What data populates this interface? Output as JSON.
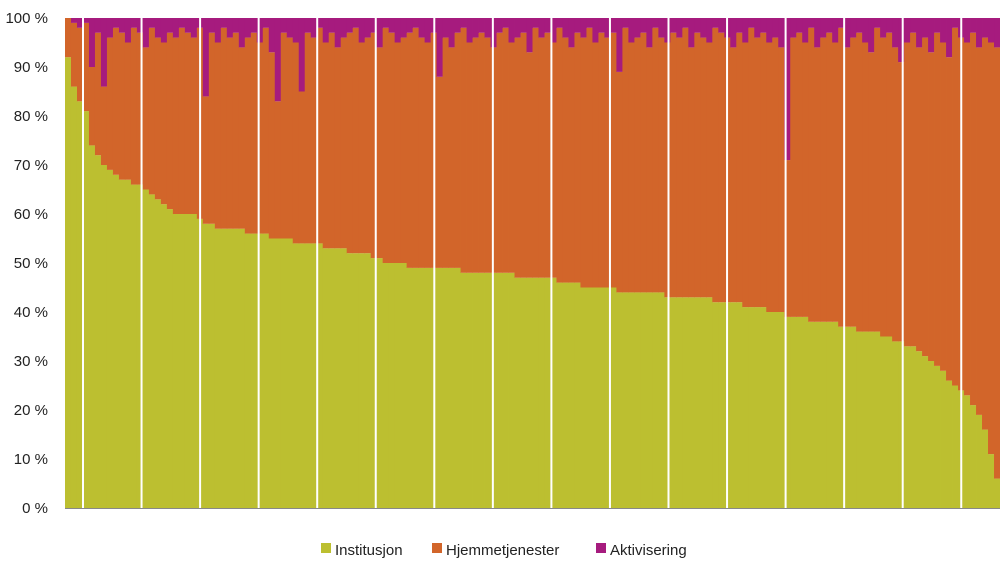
{
  "chart_data": {
    "type": "bar",
    "stacked": true,
    "normalized_percent": true,
    "ylim": [
      0,
      100
    ],
    "y_ticks": [
      "0 %",
      "10 %",
      "20 %",
      "30 %",
      "40 %",
      "50 %",
      "60 %",
      "70 %",
      "80 %",
      "90 %",
      "100 %"
    ],
    "legend_position": "bottom",
    "series": [
      {
        "name": "Institusjon",
        "color": "#BCBF30",
        "values": [
          92,
          86,
          83,
          81,
          74,
          72,
          70,
          69,
          68,
          67,
          67,
          66,
          66,
          65,
          64,
          63,
          62,
          61,
          60,
          60,
          60,
          60,
          59,
          58,
          58,
          57,
          57,
          57,
          57,
          57,
          56,
          56,
          56,
          56,
          55,
          55,
          55,
          55,
          54,
          54,
          54,
          54,
          54,
          53,
          53,
          53,
          53,
          52,
          52,
          52,
          52,
          51,
          51,
          50,
          50,
          50,
          50,
          49,
          49,
          49,
          49,
          49,
          49,
          49,
          49,
          49,
          48,
          48,
          48,
          48,
          48,
          48,
          48,
          48,
          48,
          47,
          47,
          47,
          47,
          47,
          47,
          47,
          46,
          46,
          46,
          46,
          45,
          45,
          45,
          45,
          45,
          45,
          44,
          44,
          44,
          44,
          44,
          44,
          44,
          44,
          43,
          43,
          43,
          43,
          43,
          43,
          43,
          43,
          42,
          42,
          42,
          42,
          42,
          41,
          41,
          41,
          41,
          40,
          40,
          40,
          39,
          39,
          39,
          39,
          38,
          38,
          38,
          38,
          38,
          37,
          37,
          37,
          36,
          36,
          36,
          36,
          35,
          35,
          34,
          34,
          33,
          33,
          32,
          31,
          30,
          29,
          28,
          26,
          25,
          24,
          23,
          21,
          19,
          16,
          11,
          6
        ]
      },
      {
        "name": "Hjemmetjenester",
        "color": "#D2652A",
        "values": "remainder"
      },
      {
        "name": "Aktivisering",
        "color": "#A61B7E",
        "values": [
          0,
          1,
          2,
          1,
          10,
          3,
          14,
          4,
          2,
          3,
          5,
          2,
          3,
          6,
          2,
          4,
          5,
          3,
          4,
          2,
          3,
          4,
          2,
          16,
          3,
          5,
          2,
          4,
          3,
          6,
          4,
          3,
          5,
          2,
          7,
          17,
          3,
          4,
          5,
          15,
          3,
          4,
          2,
          5,
          3,
          6,
          4,
          3,
          2,
          5,
          4,
          3,
          6,
          2,
          3,
          5,
          4,
          3,
          2,
          4,
          5,
          3,
          12,
          4,
          6,
          3,
          2,
          5,
          4,
          3,
          4,
          6,
          3,
          2,
          5,
          4,
          3,
          7,
          2,
          4,
          3,
          5,
          2,
          4,
          6,
          3,
          4,
          2,
          5,
          3,
          4,
          3,
          11,
          2,
          5,
          4,
          3,
          6,
          2,
          4,
          5,
          3,
          4,
          2,
          6,
          3,
          4,
          5,
          2,
          3,
          4,
          6,
          3,
          5,
          2,
          4,
          3,
          5,
          4,
          6,
          29,
          4,
          3,
          5,
          2,
          6,
          4,
          3,
          5,
          2,
          6,
          4,
          3,
          5,
          7,
          2,
          4,
          3,
          6,
          9,
          5,
          3,
          6,
          4,
          7,
          3,
          5,
          8,
          2,
          4,
          5,
          3,
          6,
          4,
          5,
          6
        ]
      }
    ]
  }
}
